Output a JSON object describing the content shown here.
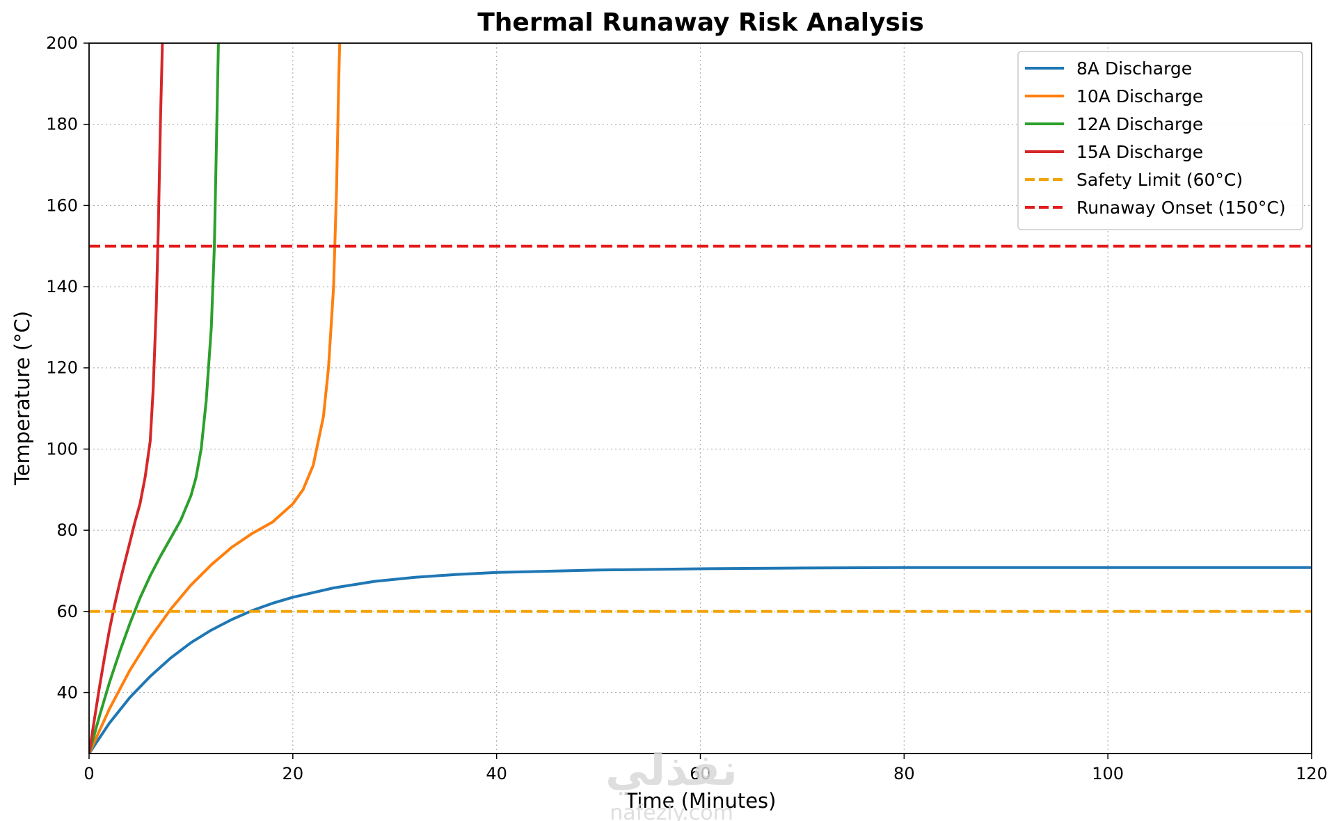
{
  "chart_data": {
    "type": "line",
    "title": "Thermal Runaway Risk Analysis",
    "xlabel": "Time (Minutes)",
    "ylabel": "Temperature (°C)",
    "xlim": [
      0,
      120
    ],
    "ylim": [
      25,
      200
    ],
    "xticks": [
      0,
      20,
      40,
      60,
      80,
      100,
      120
    ],
    "yticks": [
      40,
      60,
      80,
      100,
      120,
      140,
      160,
      180,
      200
    ],
    "grid": true,
    "legend_position": "top-right",
    "series": [
      {
        "name": "8A Discharge",
        "color": "#1f77b4",
        "style": "solid",
        "x": [
          0,
          2,
          4,
          6,
          8,
          10,
          12,
          14,
          16,
          18,
          20,
          24,
          28,
          32,
          36,
          40,
          50,
          60,
          70,
          80,
          90,
          100,
          110,
          120
        ],
        "y": [
          25,
          32.5,
          38.8,
          44,
          48.5,
          52.3,
          55.4,
          58,
          60.2,
          62,
          63.5,
          65.8,
          67.4,
          68.4,
          69.1,
          69.6,
          70.2,
          70.5,
          70.7,
          70.8,
          70.8,
          70.8,
          70.8,
          70.8
        ]
      },
      {
        "name": "10A Discharge",
        "color": "#ff7f0e",
        "style": "solid",
        "x": [
          0,
          2,
          4,
          6,
          8,
          10,
          12,
          14,
          16,
          18,
          20,
          21,
          22,
          23,
          23.5,
          24,
          24.3,
          24.5,
          24.6
        ],
        "y": [
          25,
          36,
          45.5,
          53.5,
          60.5,
          66.5,
          71.5,
          75.8,
          79.2,
          82,
          86.5,
          90,
          96,
          108,
          120,
          140,
          165,
          190,
          200
        ]
      },
      {
        "name": "12A Discharge",
        "color": "#2ca02c",
        "style": "solid",
        "x": [
          0,
          1,
          2,
          3,
          4,
          5,
          6,
          7,
          8,
          9,
          10,
          10.5,
          11,
          11.5,
          12,
          12.3,
          12.5,
          12.7
        ],
        "y": [
          25,
          34,
          42.5,
          50,
          57,
          63.3,
          68.8,
          73.6,
          78,
          82.5,
          88.5,
          93,
          100,
          112,
          130,
          150,
          175,
          200
        ]
      },
      {
        "name": "15A Discharge",
        "color": "#d62728",
        "style": "solid",
        "x": [
          0,
          0.5,
          1,
          1.5,
          2,
          2.5,
          3,
          3.5,
          4,
          4.5,
          5,
          5.5,
          6,
          6.3,
          6.6,
          6.8,
          7.0,
          7.2
        ],
        "y": [
          25,
          33,
          41,
          48.5,
          55.5,
          61.5,
          67,
          72,
          77,
          82,
          86.5,
          93,
          102,
          115,
          135,
          155,
          180,
          200
        ]
      },
      {
        "name": "Safety Limit (60°C)",
        "color": "#f0a30a",
        "style": "dashed",
        "x": [
          0,
          120
        ],
        "y": [
          60,
          60
        ]
      },
      {
        "name": "Runaway Onset (150°C)",
        "color": "#e41a1c",
        "style": "dashed",
        "x": [
          0,
          120
        ],
        "y": [
          150,
          150
        ]
      }
    ]
  },
  "watermark": {
    "line1": "نفذلي",
    "line2": "nafezly.com"
  }
}
